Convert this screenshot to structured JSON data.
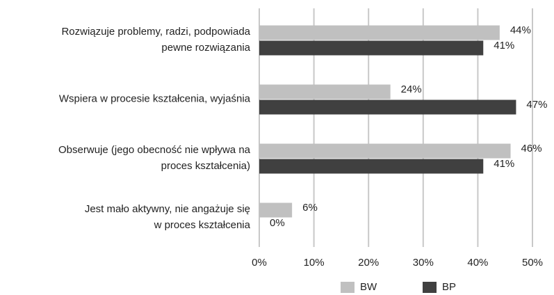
{
  "chart_data": {
    "type": "bar",
    "orientation": "horizontal",
    "categories": [
      "Rozwiązuje problemy, radzi, podpowiada\npewne rozwiązania",
      "Wspiera w procesie kształcenia, wyjaśnia",
      "Obserwuje (jego obecność nie wpływa na\nproces kształcenia)",
      "Jest mało aktywny, nie angażuje się\nw proces kształcenia"
    ],
    "series": [
      {
        "name": "BW",
        "color": "#c0c0c0",
        "values": [
          44,
          24,
          46,
          6
        ],
        "value_labels": [
          "44%",
          "24%",
          "46%",
          "6%"
        ]
      },
      {
        "name": "BP",
        "color": "#404040",
        "values": [
          41,
          47,
          41,
          0
        ],
        "value_labels": [
          "41%",
          "47%",
          "41%",
          "0%"
        ]
      }
    ],
    "xlim": [
      0,
      50
    ],
    "xticks": [
      {
        "value": 0,
        "label": "0%"
      },
      {
        "value": 10,
        "label": "10%"
      },
      {
        "value": 20,
        "label": "20%"
      },
      {
        "value": 30,
        "label": "30%"
      },
      {
        "value": 40,
        "label": "40%"
      },
      {
        "value": 50,
        "label": "50%"
      }
    ],
    "grid": true,
    "legend": "bottom"
  }
}
